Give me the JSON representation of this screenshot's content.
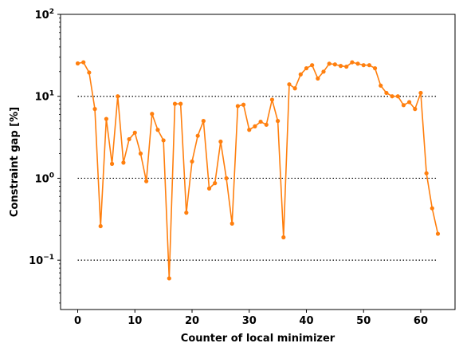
{
  "chart_data": {
    "type": "line",
    "title": "",
    "xlabel": "Counter of local minimizer",
    "ylabel": "Constraint gap [%]",
    "xlim": [
      -3,
      66
    ],
    "ylim": [
      0.025,
      100
    ],
    "yscale": "log",
    "grid": false,
    "legend": "none",
    "x_ticks": [
      0,
      10,
      20,
      30,
      40,
      50,
      60
    ],
    "y_ticks": [
      {
        "value": 0.1,
        "base": "10",
        "exp": "−1"
      },
      {
        "value": 1,
        "base": "10",
        "exp": "0"
      },
      {
        "value": 10,
        "base": "10",
        "exp": "1"
      },
      {
        "value": 100,
        "base": "10",
        "exp": "2"
      }
    ],
    "reference_lines": {
      "values": [
        0.1,
        1,
        10
      ],
      "x_range": [
        0,
        63
      ],
      "style": "dotted",
      "color": "#000000"
    },
    "series": [
      {
        "color": "#ff7f0e",
        "x": [
          0,
          1,
          2,
          3,
          4,
          5,
          6,
          7,
          8,
          9,
          10,
          11,
          12,
          13,
          14,
          15,
          16,
          17,
          18,
          19,
          20,
          21,
          22,
          23,
          24,
          25,
          26,
          27,
          28,
          29,
          30,
          31,
          32,
          33,
          34,
          35,
          36,
          37,
          38,
          39,
          40,
          41,
          42,
          43,
          44,
          45,
          46,
          47,
          48,
          49,
          50,
          51,
          52,
          53,
          54,
          55,
          56,
          57,
          58,
          59,
          60,
          61,
          62,
          63
        ],
        "y": [
          25.2,
          26.0,
          19.5,
          7.0,
          0.26,
          5.3,
          1.5,
          10.0,
          1.55,
          3.0,
          3.6,
          2.0,
          0.92,
          6.1,
          3.9,
          2.9,
          0.06,
          8.1,
          8.1,
          0.38,
          1.6,
          3.3,
          5.0,
          0.75,
          0.87,
          2.8,
          1.0,
          0.28,
          7.6,
          7.9,
          3.9,
          4.3,
          4.9,
          4.5,
          9.1,
          5.0,
          0.19,
          14.0,
          12.5,
          18.5,
          22.0,
          24.0,
          16.5,
          20.0,
          25.0,
          24.5,
          23.5,
          23.0,
          26.0,
          25.0,
          24.0,
          24.0,
          22.0,
          13.5,
          11.0,
          10.0,
          10.0,
          7.8,
          8.5,
          7.0,
          11.0,
          1.15,
          0.43,
          0.21
        ]
      }
    ]
  }
}
